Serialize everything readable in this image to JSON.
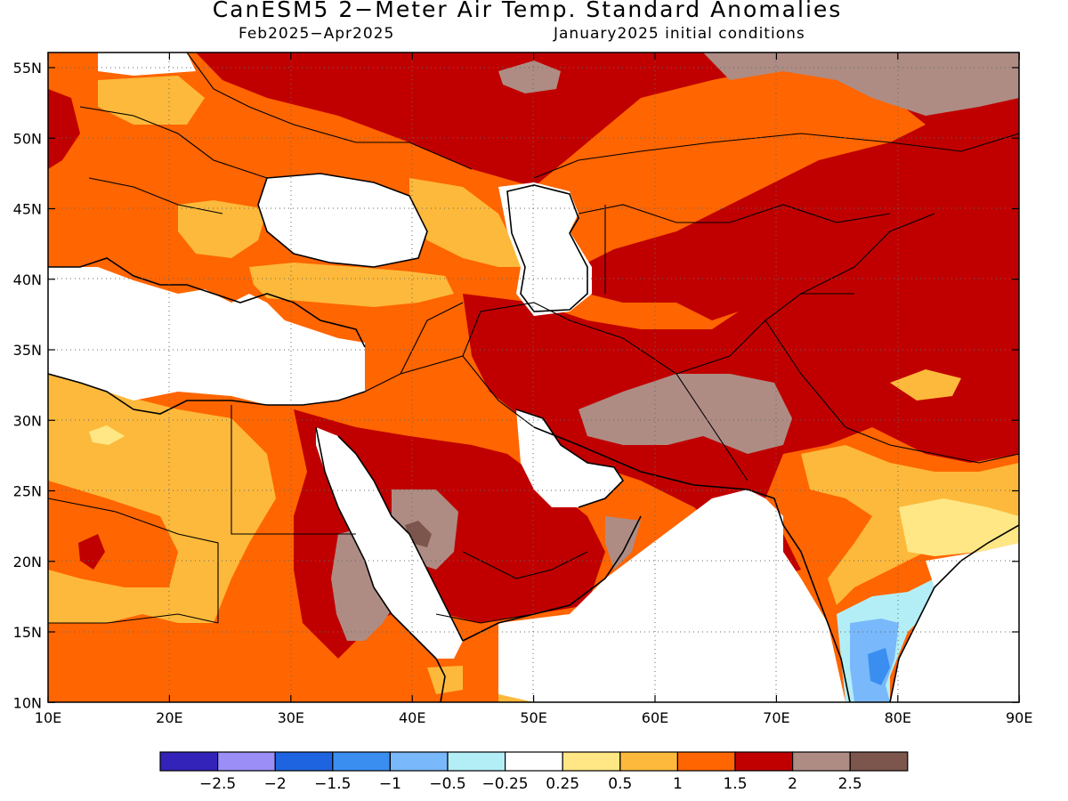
{
  "header": {
    "title": "CanESM5 2−Meter Air Temp. Standard Anomalies",
    "period": "Feb2025−Apr2025",
    "initial_conditions": "January2025 initial conditions"
  },
  "map": {
    "lat_labels": [
      "55N",
      "50N",
      "45N",
      "40N",
      "35N",
      "30N",
      "25N",
      "20N",
      "15N",
      "10N"
    ],
    "lon_labels": [
      "10E",
      "20E",
      "30E",
      "40E",
      "50E",
      "60E",
      "70E",
      "80E",
      "90E"
    ],
    "lon_range": [
      10,
      90
    ],
    "lat_range": [
      10,
      56
    ],
    "grid": "dotted"
  },
  "legend": {
    "colors": [
      "#3323b8",
      "#9b8ef6",
      "#1e64e0",
      "#3a8ef0",
      "#79b8fa",
      "#b3eef6",
      "#ffffff",
      "#fee784",
      "#fdb93b",
      "#ff6500",
      "#c00000",
      "#ae8c84",
      "#7c564c"
    ],
    "labels": [
      "−2.5",
      "−2",
      "−1.5",
      "−1",
      "−0.5",
      "−0.25",
      "0.25",
      "0.5",
      "1",
      "1.5",
      "2",
      "2.5"
    ]
  }
}
